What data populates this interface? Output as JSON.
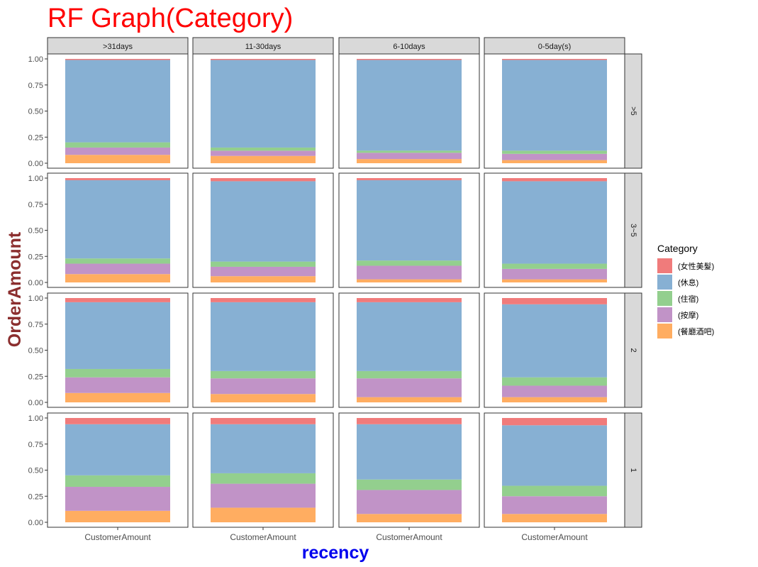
{
  "chart_data": {
    "type": "bar",
    "stacked": true,
    "faceted": true,
    "title": "RF Graph(Category)",
    "title_color": "#ff0000",
    "xlabel": "recency",
    "xlabel_color": "#0000ee",
    "ylabel": "OrderAmount",
    "ylabel_color": "#8b2e2e",
    "x_category": "CustomerAmount",
    "ylim": [
      0,
      1
    ],
    "yticks": [
      "0.00",
      "0.25",
      "0.50",
      "0.75",
      "1.00"
    ],
    "ytick_values": [
      0,
      0.25,
      0.5,
      0.75,
      1
    ],
    "columns": [
      ">31days",
      "11-30days",
      "6-10days",
      "0-5day(s)"
    ],
    "rows": [
      ">5",
      "3~5",
      "2",
      "1"
    ],
    "legend": {
      "title": "Category",
      "placement": "right",
      "entries": [
        {
          "label": "(女性美髮)",
          "color": "#f07b7b"
        },
        {
          "label": "(休息)",
          "color": "#87b0d3"
        },
        {
          "label": "(住宿)",
          "color": "#93cf8e"
        },
        {
          "label": "(按摩)",
          "color": "#c193c7"
        },
        {
          "label": "(餐廳酒吧)",
          "color": "#ffad61"
        }
      ]
    },
    "stack_order_bottom_to_top": [
      "(餐廳酒吧)",
      "(按摩)",
      "(住宿)",
      "(休息)",
      "(女性美髮)"
    ],
    "panels": [
      [
        {
          "(餐廳酒吧)": 0.08,
          "(按摩)": 0.07,
          "(住宿)": 0.05,
          "(休息)": 0.79,
          "(女性美髮)": 0.01
        },
        {
          "(餐廳酒吧)": 0.07,
          "(按摩)": 0.05,
          "(住宿)": 0.03,
          "(休息)": 0.84,
          "(女性美髮)": 0.01
        },
        {
          "(餐廳酒吧)": 0.04,
          "(按摩)": 0.06,
          "(住宿)": 0.02,
          "(休息)": 0.87,
          "(女性美髮)": 0.01
        },
        {
          "(餐廳酒吧)": 0.03,
          "(按摩)": 0.06,
          "(住宿)": 0.03,
          "(休息)": 0.87,
          "(女性美髮)": 0.01
        }
      ],
      [
        {
          "(餐廳酒吧)": 0.08,
          "(按摩)": 0.1,
          "(住宿)": 0.05,
          "(休息)": 0.75,
          "(女性美髮)": 0.02
        },
        {
          "(餐廳酒吧)": 0.06,
          "(按摩)": 0.09,
          "(住宿)": 0.05,
          "(休息)": 0.77,
          "(女性美髮)": 0.03
        },
        {
          "(餐廳酒吧)": 0.03,
          "(按摩)": 0.13,
          "(住宿)": 0.05,
          "(休息)": 0.77,
          "(女性美髮)": 0.02
        },
        {
          "(餐廳酒吧)": 0.03,
          "(按摩)": 0.1,
          "(住宿)": 0.05,
          "(休息)": 0.79,
          "(女性美髮)": 0.03
        }
      ],
      [
        {
          "(餐廳酒吧)": 0.09,
          "(按摩)": 0.15,
          "(住宿)": 0.08,
          "(休息)": 0.64,
          "(女性美髮)": 0.04
        },
        {
          "(餐廳酒吧)": 0.08,
          "(按摩)": 0.15,
          "(住宿)": 0.07,
          "(休息)": 0.66,
          "(女性美髮)": 0.04
        },
        {
          "(餐廳酒吧)": 0.05,
          "(按摩)": 0.18,
          "(住宿)": 0.07,
          "(休息)": 0.66,
          "(女性美髮)": 0.04
        },
        {
          "(餐廳酒吧)": 0.05,
          "(按摩)": 0.11,
          "(住宿)": 0.08,
          "(休息)": 0.7,
          "(女性美髮)": 0.06
        }
      ],
      [
        {
          "(餐廳酒吧)": 0.11,
          "(按摩)": 0.23,
          "(住宿)": 0.11,
          "(休息)": 0.49,
          "(女性美髮)": 0.06
        },
        {
          "(餐廳酒吧)": 0.14,
          "(按摩)": 0.23,
          "(住宿)": 0.1,
          "(休息)": 0.47,
          "(女性美髮)": 0.06
        },
        {
          "(餐廳酒吧)": 0.08,
          "(按摩)": 0.23,
          "(住宿)": 0.1,
          "(休息)": 0.53,
          "(女性美髮)": 0.06
        },
        {
          "(餐廳酒吧)": 0.08,
          "(按摩)": 0.17,
          "(住宿)": 0.1,
          "(休息)": 0.58,
          "(女性美髮)": 0.07
        }
      ]
    ]
  }
}
